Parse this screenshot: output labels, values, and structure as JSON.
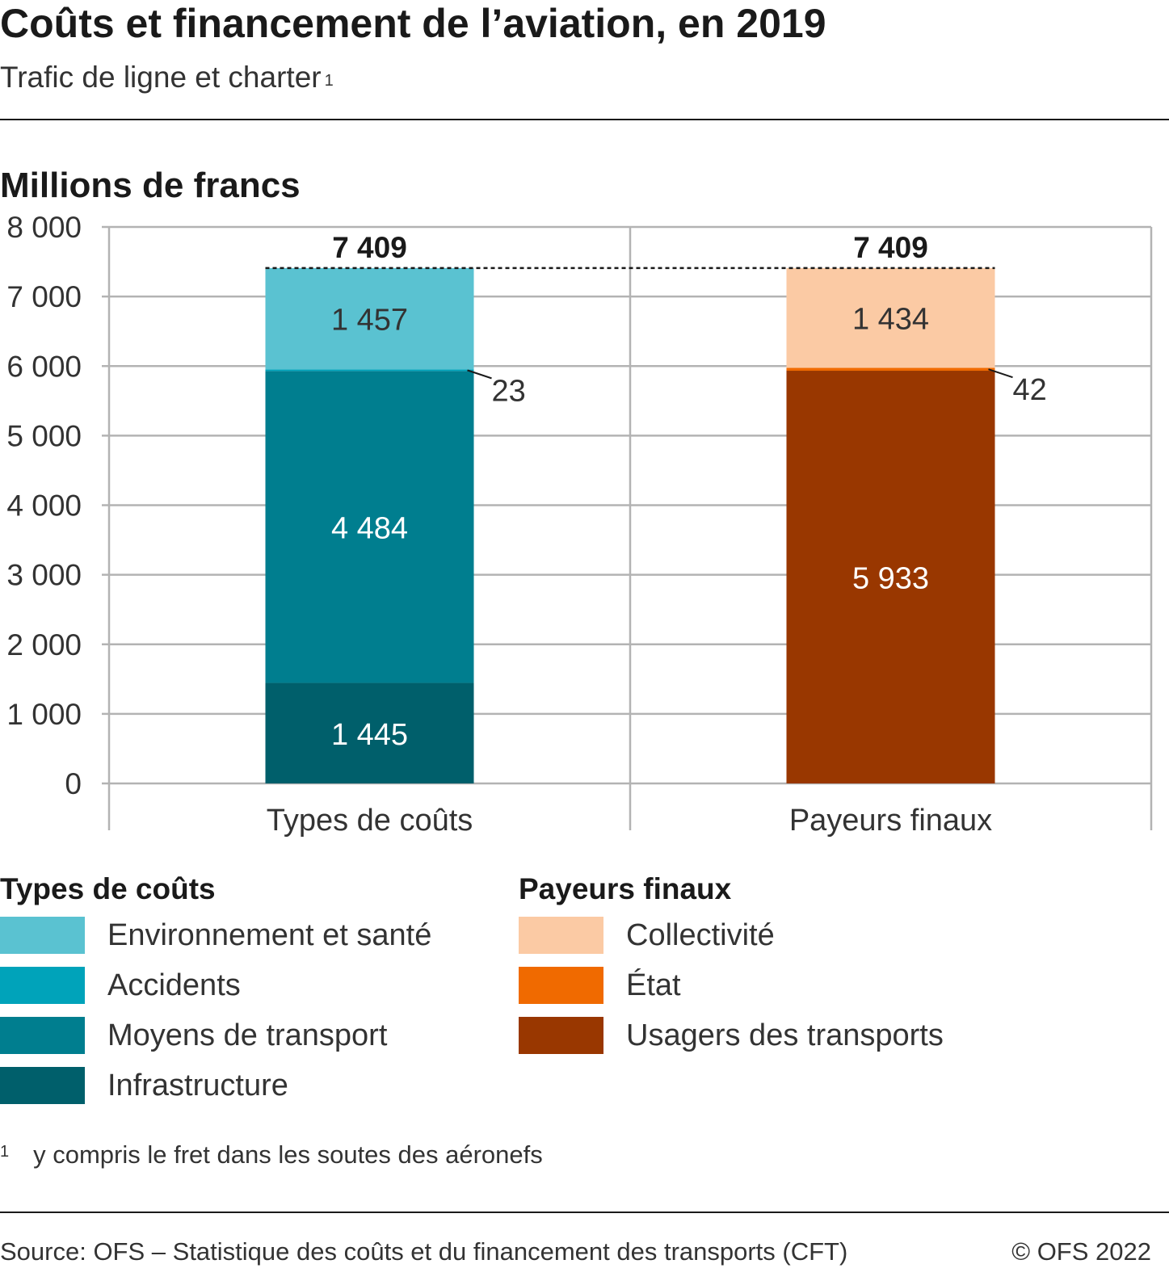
{
  "header": {
    "title": "Coûts et financement de l’aviation, en 2019",
    "subtitle": "Trafic de ligne et charter",
    "subtitle_note": "1"
  },
  "chart_data": {
    "type": "bar",
    "stacked": true,
    "unit_label": "Millions de francs",
    "ylim": [
      0,
      8000
    ],
    "y_ticks": [
      0,
      1000,
      2000,
      3000,
      4000,
      5000,
      6000,
      7000,
      8000
    ],
    "y_tick_labels": [
      "0",
      "1 000",
      "2 000",
      "3 000",
      "4 000",
      "5 000",
      "6 000",
      "7 000",
      "8 000"
    ],
    "grid": true,
    "categories": [
      "Types de coûts",
      "Payeurs finaux"
    ],
    "totals": [
      7409,
      7409
    ],
    "total_labels": [
      "7 409",
      "7 409"
    ],
    "bars": [
      {
        "category": "Types de coûts",
        "segments": [
          {
            "name": "Infrastructure",
            "value": 1445,
            "label": "1 445",
            "color": "#005f6b"
          },
          {
            "name": "Moyens de transport",
            "value": 4484,
            "label": "4 484",
            "color": "#007e8f"
          },
          {
            "name": "Accidents",
            "value": 23,
            "label": "23",
            "color": "#00a3ba"
          },
          {
            "name": "Environnement et santé",
            "value": 1457,
            "label": "1 457",
            "color": "#5ac2d1"
          }
        ]
      },
      {
        "category": "Payeurs finaux",
        "segments": [
          {
            "name": "Usagers des transports",
            "value": 5933,
            "label": "5 933",
            "color": "#993700"
          },
          {
            "name": "État",
            "value": 42,
            "label": "42",
            "color": "#f06a00"
          },
          {
            "name": "Collectivité",
            "value": 1434,
            "label": "1 434",
            "color": "#fbcaa4"
          }
        ]
      }
    ]
  },
  "legend": {
    "groups": [
      {
        "title": "Types de coûts",
        "items": [
          {
            "label": "Environnement et santé",
            "color": "#5ac2d1"
          },
          {
            "label": "Accidents",
            "color": "#00a3ba"
          },
          {
            "label": "Moyens de transport",
            "color": "#007e8f"
          },
          {
            "label": "Infrastructure",
            "color": "#005f6b"
          }
        ]
      },
      {
        "title": "Payeurs finaux",
        "items": [
          {
            "label": "Collectivité",
            "color": "#fbcaa4"
          },
          {
            "label": "État",
            "color": "#f06a00"
          },
          {
            "label": "Usagers des transports",
            "color": "#993700"
          }
        ]
      }
    ]
  },
  "footnote": {
    "mark": "1",
    "text": "y compris le fret dans les soutes des aéronefs"
  },
  "footer": {
    "source": "Source: OFS – Statistique des coûts et du financement des transports (CFT)",
    "copyright": "© OFS 2022"
  }
}
